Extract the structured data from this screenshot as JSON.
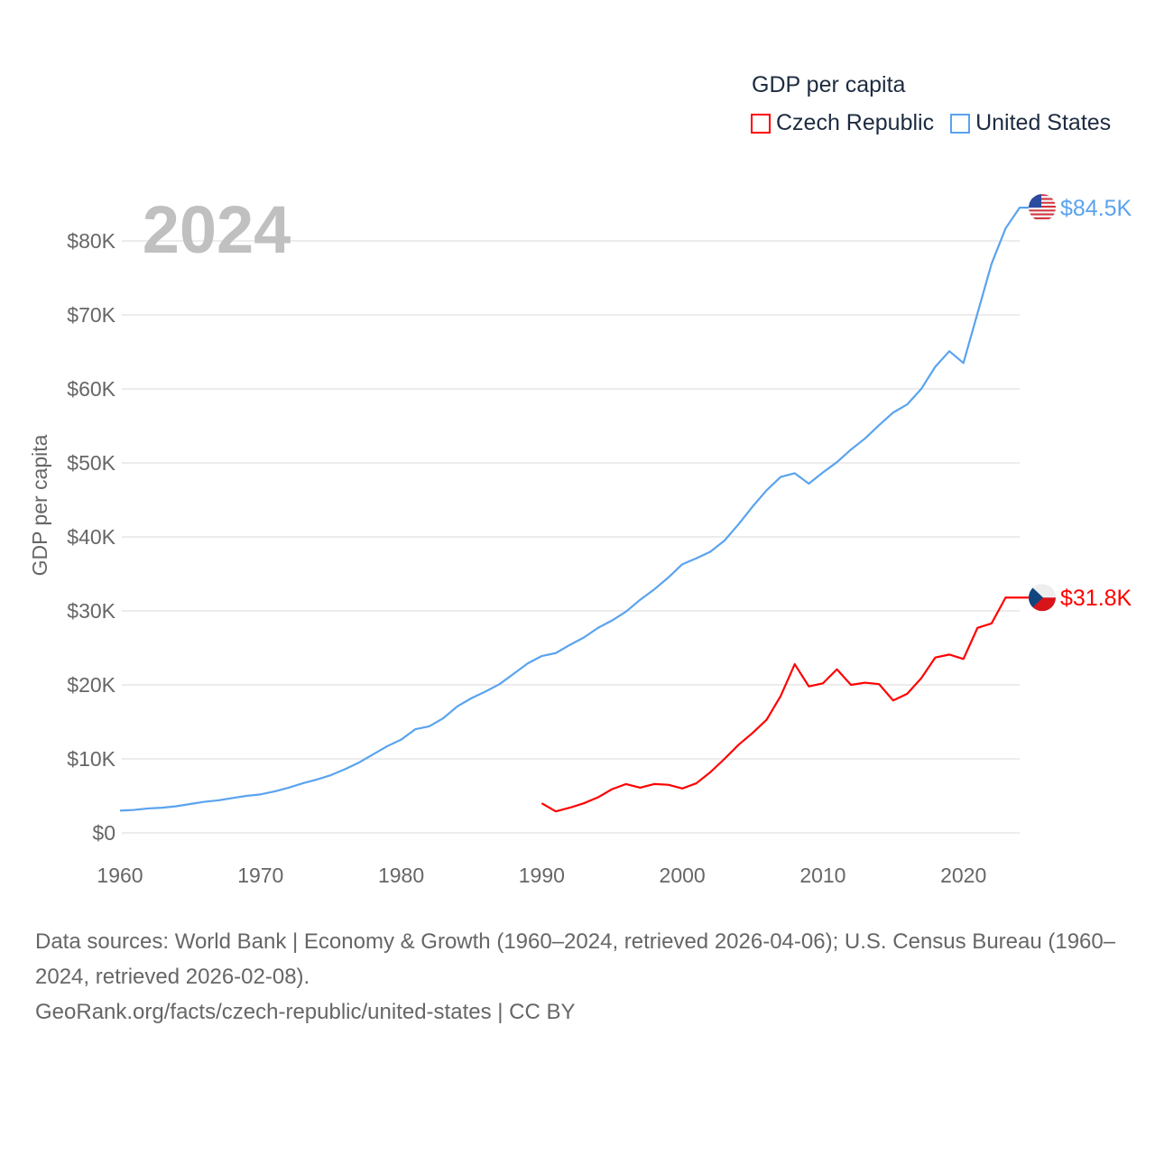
{
  "chart_data": {
    "type": "line",
    "title": "GDP per capita",
    "year_label": "2024",
    "ylabel": "GDP per capita",
    "xlabel": "",
    "xlim": [
      1960,
      2024
    ],
    "ylim": [
      0,
      84500
    ],
    "x_ticks": [
      "1960",
      "1970",
      "1980",
      "1990",
      "2000",
      "2010",
      "2020"
    ],
    "y_ticks": [
      {
        "value": 0,
        "label": "$0"
      },
      {
        "value": 10000,
        "label": "$10K"
      },
      {
        "value": 20000,
        "label": "$20K"
      },
      {
        "value": 30000,
        "label": "$30K"
      },
      {
        "value": 40000,
        "label": "$40K"
      },
      {
        "value": 50000,
        "label": "$50K"
      },
      {
        "value": 60000,
        "label": "$60K"
      },
      {
        "value": 70000,
        "label": "$70K"
      },
      {
        "value": 80000,
        "label": "$80K"
      }
    ],
    "grid": true,
    "legend_position": "top-right",
    "series": [
      {
        "name": "Czech Republic",
        "color": "#ff0000",
        "end_label": "$31.8K",
        "flag": "czech-flag",
        "start_year": 1990,
        "values": [
          4.0,
          2.9,
          3.4,
          4.0,
          4.8,
          5.9,
          6.6,
          6.1,
          6.6,
          6.5,
          6.0,
          6.7,
          8.2,
          10.0,
          11.9,
          13.5,
          15.3,
          18.5,
          22.8,
          19.8,
          20.2,
          22.1,
          20.0,
          20.3,
          20.1,
          17.9,
          18.8,
          20.9,
          23.7,
          24.1,
          23.5,
          27.7,
          28.3,
          31.8,
          31.8
        ],
        "unit": "thousand USD"
      },
      {
        "name": "United States",
        "color": "#5aa3ee",
        "end_label": "$84.5K",
        "flag": "us-flag",
        "start_year": 1960,
        "values": [
          3.0,
          3.1,
          3.3,
          3.4,
          3.6,
          3.9,
          4.2,
          4.4,
          4.7,
          5.0,
          5.2,
          5.6,
          6.1,
          6.7,
          7.2,
          7.8,
          8.6,
          9.5,
          10.6,
          11.7,
          12.6,
          14.0,
          14.4,
          15.5,
          17.1,
          18.2,
          19.1,
          20.1,
          21.5,
          22.9,
          23.9,
          24.3,
          25.4,
          26.4,
          27.7,
          28.7,
          29.9,
          31.5,
          32.9,
          34.5,
          36.3,
          37.1,
          38.0,
          39.5,
          41.7,
          44.1,
          46.3,
          48.1,
          48.6,
          47.2,
          48.7,
          50.1,
          51.8,
          53.3,
          55.1,
          56.8,
          57.9,
          60.0,
          63.0,
          65.1,
          63.5,
          70.2,
          76.9,
          81.7,
          84.5
        ],
        "unit": "thousand USD"
      }
    ]
  },
  "footer": {
    "sources": "Data sources: World Bank | Economy & Growth (1960–2024, retrieved 2026-04-06); U.S. Census Bureau (1960–2024, retrieved 2026-02-08).",
    "credit": "GeoRank.org/facts/czech-republic/united-states | CC BY"
  }
}
